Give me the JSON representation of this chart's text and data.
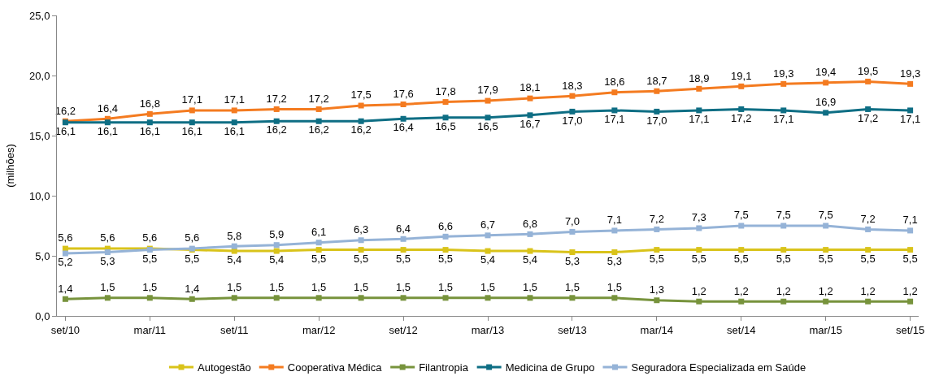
{
  "chart_data": {
    "type": "line",
    "ylabel": "(milhões)",
    "categories": [
      "set/10",
      null,
      "mar/11",
      null,
      "set/11",
      null,
      "mar/12",
      null,
      "set/12",
      null,
      "mar/13",
      null,
      "set/13",
      null,
      "mar/14",
      null,
      "set/14",
      null,
      "mar/15",
      null,
      "set/15"
    ],
    "ylim": [
      0,
      25
    ],
    "yticks": [
      {
        "value": 0,
        "label": "0,0"
      },
      {
        "value": 5,
        "label": "5,0"
      },
      {
        "value": 10,
        "label": "10,0"
      },
      {
        "value": 15,
        "label": "15,0"
      },
      {
        "value": 20,
        "label": "20,0"
      },
      {
        "value": 25,
        "label": "25,0"
      }
    ],
    "grid": false,
    "legend": "bottom",
    "marker": "square",
    "series": [
      {
        "name": "Autogestão",
        "color": "#d9c31a",
        "values": [
          5.6,
          5.6,
          5.6,
          5.5,
          5.4,
          5.4,
          5.5,
          5.5,
          5.5,
          5.5,
          5.4,
          5.4,
          5.3,
          5.3,
          5.5,
          5.5,
          5.5,
          5.5,
          5.5,
          5.5,
          5.5
        ],
        "value_labels": [
          "5,6",
          "5,6",
          "5,6",
          "5,5",
          "5,4",
          "5,4",
          "5,5",
          "5,5",
          "5,5",
          "5,5",
          "5,4",
          "5,4",
          "5,3",
          "5,3",
          "5,5",
          "5,5",
          "5,5",
          "5,5",
          "5,5",
          "5,5",
          "5,5"
        ]
      },
      {
        "name": "Cooperativa Médica",
        "color": "#f47b20",
        "values": [
          16.2,
          16.4,
          16.8,
          17.1,
          17.1,
          17.2,
          17.2,
          17.5,
          17.6,
          17.8,
          17.9,
          18.1,
          18.3,
          18.6,
          18.7,
          18.9,
          19.1,
          19.3,
          19.4,
          19.5,
          19.3
        ],
        "value_labels": [
          "16,2",
          "16,4",
          "16,8",
          "17,1",
          "17,1",
          "17,2",
          "17,2",
          "17,5",
          "17,6",
          "17,8",
          "17,9",
          "18,1",
          "18,3",
          "18,6",
          "18,7",
          "18,9",
          "19,1",
          "19,3",
          "19,4",
          "19,5",
          "19,3"
        ]
      },
      {
        "name": "Filantropia",
        "color": "#77933c",
        "values": [
          1.4,
          1.5,
          1.5,
          1.4,
          1.5,
          1.5,
          1.5,
          1.5,
          1.5,
          1.5,
          1.5,
          1.5,
          1.5,
          1.5,
          1.3,
          1.2,
          1.2,
          1.2,
          1.2,
          1.2,
          1.2
        ],
        "value_labels": [
          "1,4",
          "1,5",
          "1,5",
          "1,4",
          "1,5",
          "1,5",
          "1,5",
          "1,5",
          "1,5",
          "1,5",
          "1,5",
          "1,5",
          "1,5",
          "1,5",
          "1,3",
          "1,2",
          "1,2",
          "1,2",
          "1,2",
          "1,2",
          "1,2"
        ]
      },
      {
        "name": "Medicina de Grupo",
        "color": "#0e6e84",
        "values": [
          16.1,
          16.1,
          16.1,
          16.1,
          16.1,
          16.2,
          16.2,
          16.2,
          16.4,
          16.5,
          16.5,
          16.7,
          17.0,
          17.1,
          17.0,
          17.1,
          17.2,
          17.1,
          16.9,
          17.2,
          17.1
        ],
        "value_labels": [
          "16,1",
          "16,1",
          "16,1",
          "16,1",
          "16,1",
          "16,2",
          "16,2",
          "16,2",
          "16,4",
          "16,5",
          "16,5",
          "16,7",
          "17,0",
          "17,1",
          "17,0",
          "17,1",
          "17,2",
          "17,1",
          "16,9",
          "17,2",
          "17,1"
        ]
      },
      {
        "name": "Seguradora Especializada em Saúde",
        "color": "#95b3d7",
        "values": [
          5.2,
          5.3,
          5.5,
          5.6,
          5.8,
          5.9,
          6.1,
          6.3,
          6.4,
          6.6,
          6.7,
          6.8,
          7.0,
          7.1,
          7.2,
          7.3,
          7.5,
          7.5,
          7.5,
          7.2,
          7.1
        ],
        "value_labels": [
          "5,2",
          "5,3",
          "5,5",
          "5,6",
          "5,8",
          "5,9",
          "6,1",
          "6,3",
          "6,4",
          "6,6",
          "6,7",
          "6,8",
          "7,0",
          "7,1",
          "7,2",
          "7,3",
          "7,5",
          "7,5",
          "7,5",
          "7,2",
          "7,1"
        ]
      }
    ]
  }
}
